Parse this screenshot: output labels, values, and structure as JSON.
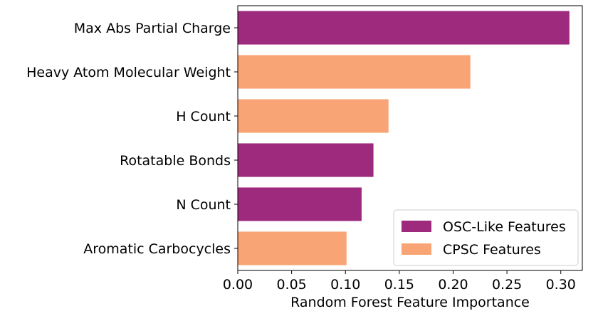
{
  "chart_data": {
    "type": "bar",
    "orientation": "horizontal",
    "title": "",
    "xlabel": "Random Forest Feature Importance",
    "ylabel": "",
    "xlim": [
      0,
      0.32
    ],
    "xticks": [
      "0.00",
      "0.05",
      "0.10",
      "0.15",
      "0.20",
      "0.25",
      "0.30"
    ],
    "grid": false,
    "legend_position": "bottom-right",
    "categories": [
      "Max Abs Partial Charge",
      "Heavy Atom Molecular Weight",
      "H Count",
      "Rotatable Bonds",
      "N Count",
      "Aromatic Carbocycles"
    ],
    "values": [
      0.308,
      0.216,
      0.14,
      0.126,
      0.115,
      0.101
    ],
    "groups": [
      "osc",
      "cpsc",
      "cpsc",
      "osc",
      "osc",
      "cpsc"
    ],
    "legend": [
      {
        "key": "osc",
        "label": "OSC-Like Features",
        "color": "#9d2a7c"
      },
      {
        "key": "cpsc",
        "label": "CPSC Features",
        "color": "#f9a475"
      }
    ]
  }
}
